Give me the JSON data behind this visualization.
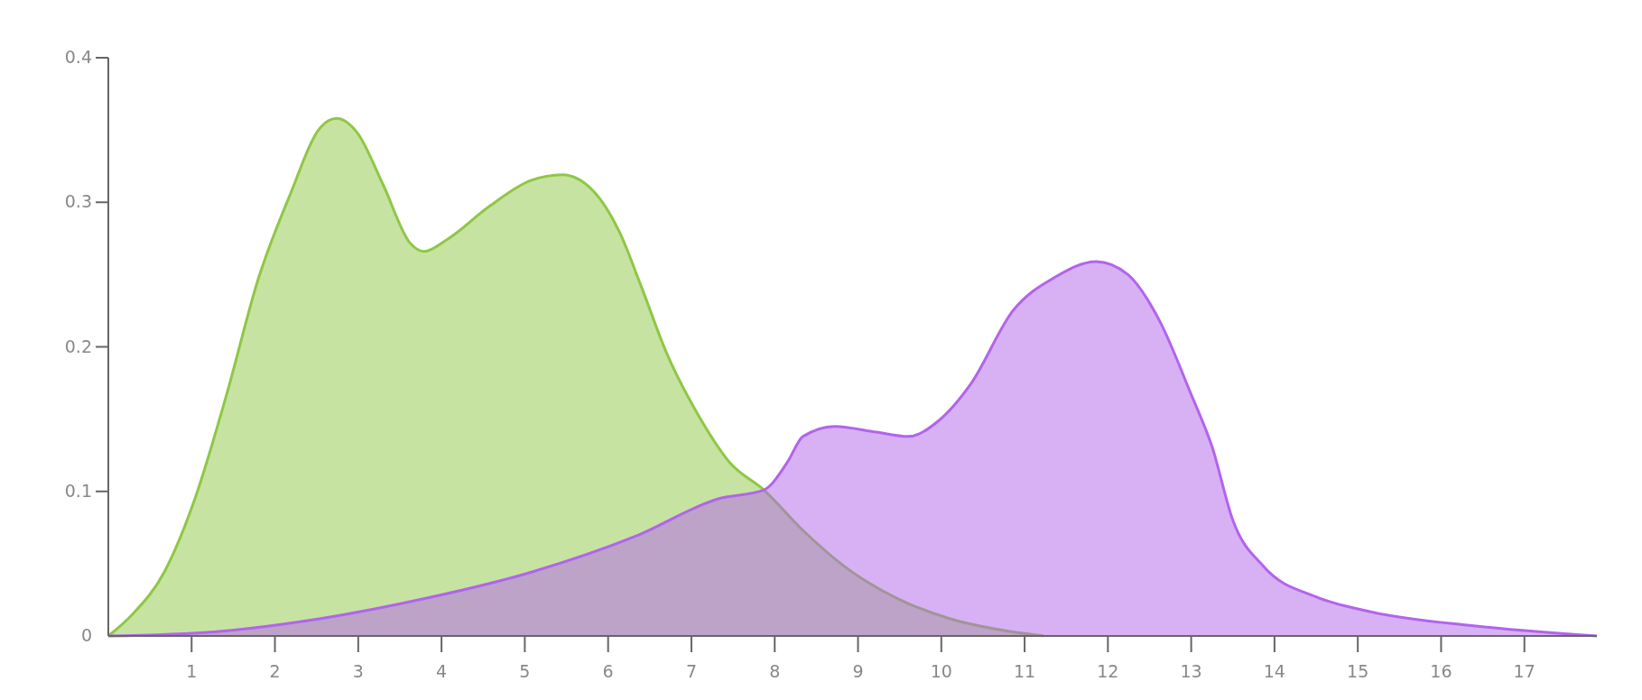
{
  "chart_data": {
    "type": "area",
    "xlim": [
      0,
      17.87
    ],
    "ylim": [
      0,
      0.4
    ],
    "xticks": [
      1,
      2,
      3,
      4,
      5,
      6,
      7,
      8,
      9,
      10,
      11,
      12,
      13,
      14,
      15,
      16,
      17
    ],
    "yticks": [
      0,
      0.1,
      0.2,
      0.3,
      0.4
    ],
    "grid": false,
    "series": [
      {
        "color": "#8fc745",
        "x": [
          0,
          0.29,
          0.67,
          1.04,
          1.42,
          1.8,
          2.18,
          2.55,
          2.74,
          2.99,
          3.3,
          3.62,
          3.79,
          4.06,
          4.57,
          5.07,
          5.45,
          5.82,
          6.14,
          6.39,
          6.7,
          7.08,
          7.46,
          7.87,
          8.34,
          8.84,
          9.47,
          10.1,
          10.73,
          11.23
        ],
        "values": [
          0,
          0.015,
          0.044,
          0.095,
          0.167,
          0.247,
          0.305,
          0.352,
          0.358,
          0.348,
          0.312,
          0.272,
          0.266,
          0.274,
          0.297,
          0.315,
          0.319,
          0.308,
          0.279,
          0.243,
          0.196,
          0.153,
          0.12,
          0.101,
          0.073,
          0.048,
          0.026,
          0.012,
          0.004,
          0
        ]
      },
      {
        "color": "#b264ec",
        "x": [
          0,
          1.3,
          2.55,
          3.81,
          5.07,
          6.33,
          7.33,
          7.87,
          8.15,
          8.34,
          8.72,
          9.22,
          9.6,
          9.97,
          10.35,
          10.86,
          11.36,
          11.86,
          12.24,
          12.62,
          13.0,
          13.25,
          13.5,
          13.87,
          14.5,
          15.13,
          16.39,
          17.87
        ],
        "values": [
          0,
          0.003,
          0.012,
          0.026,
          0.044,
          0.069,
          0.095,
          0.101,
          0.12,
          0.138,
          0.145,
          0.141,
          0.138,
          0.149,
          0.174,
          0.225,
          0.248,
          0.259,
          0.25,
          0.218,
          0.167,
          0.131,
          0.08,
          0.048,
          0.027,
          0.017,
          0.007,
          0
        ]
      }
    ]
  }
}
